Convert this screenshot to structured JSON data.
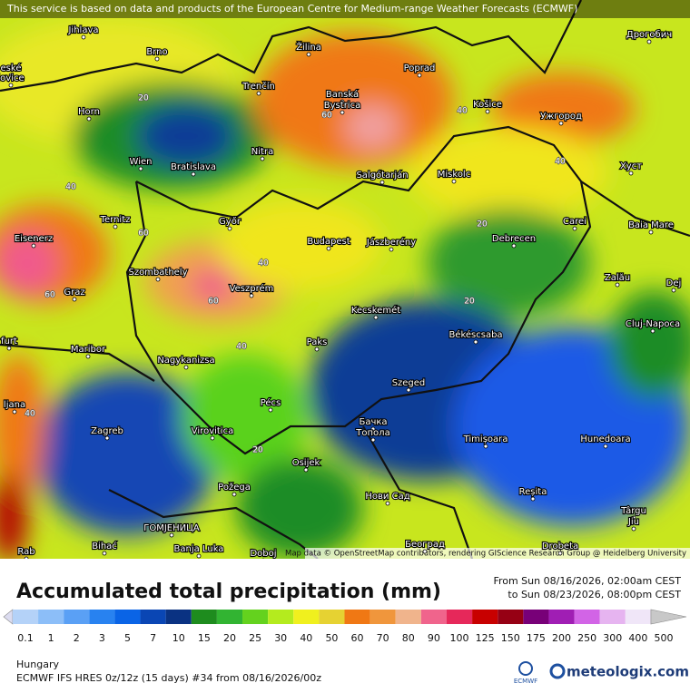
{
  "banner": "This service is based on data and products of the European Centre for Medium-range Weather Forecasts (ECMWF)",
  "map": {
    "cities": [
      "Jihlava",
      "eské",
      "jovice",
      "Brno",
      "Žilina",
      "Poprad",
      "Дрогобич",
      "Trenčín",
      "Banská",
      "Bystrica",
      "Košice",
      "Ужгород",
      "Horn",
      "Nitra",
      "Wien",
      "Bratislava",
      "Salgótarján",
      "Miskolc",
      "Хуст",
      "Ternitz",
      "Győr",
      "Budapest",
      "Jászberény",
      "Debrecen",
      "Carei",
      "Baia Mare",
      "Eisenerz",
      "Szombathely",
      "Veszprém",
      "Zalău",
      "Graz",
      "Dej",
      "Kecskemét",
      "Cluj-Napoca",
      "Békéscsaba",
      "Paks",
      "Maribor",
      "furt",
      "Nagykanizsa",
      "Szeged",
      "Pécs",
      "ljana",
      "Zagreb",
      "Virovitica",
      "Бачка",
      "Топола",
      "Timișoara",
      "Hunedoara",
      "Osijek",
      "Požega",
      "Нови Сад",
      "Reșita",
      "Târgu",
      "Jiu",
      "ГОМЈЕНИЦА",
      "Bihać",
      "Banja Luka",
      "Doboj",
      "Београд",
      "Drobeta",
      "Rab"
    ],
    "contour_labels": [
      20,
      60,
      40,
      40,
      40,
      20,
      60,
      40,
      60,
      60,
      20,
      40,
      40,
      20
    ],
    "attribution": "Map data © OpenStreetMap contributors, rendering GIScience Research Group @ Heidelberg University"
  },
  "title": "Accumulated total precipitation (mm)",
  "period": {
    "from": "From Sun 08/16/2026, 02:00am CEST",
    "to": "to Sun 08/23/2026, 08:00pm CEST"
  },
  "legend": {
    "labels": [
      0.1,
      1,
      2,
      3,
      5,
      7,
      10,
      15,
      20,
      25,
      30,
      40,
      50,
      60,
      70,
      80,
      90,
      100,
      125,
      150,
      175,
      200,
      250,
      300,
      400,
      500
    ],
    "colors": [
      "#dcdcf0",
      "#b4d2f8",
      "#8cbef8",
      "#5aa0f5",
      "#2882f0",
      "#0a64e6",
      "#0a46b4",
      "#0a3282",
      "#1e8c1e",
      "#32b432",
      "#64d21e",
      "#b4eb1e",
      "#f0f01e",
      "#e6d232",
      "#f07814",
      "#f0963c",
      "#f0b48c",
      "#f0648c",
      "#e6285a",
      "#c80000",
      "#960014",
      "#780078",
      "#a01eb4",
      "#d264e6",
      "#e6b4f0",
      "#f0e6f8",
      "#c8c8c8"
    ]
  },
  "region": "Hungary",
  "model": "ECMWF IFS HRES 0z/12z (15 days) #34 from  08/16/2026/00z",
  "logos": {
    "ecmwf": "ECMWF",
    "meteologix": "meteologix.com"
  }
}
